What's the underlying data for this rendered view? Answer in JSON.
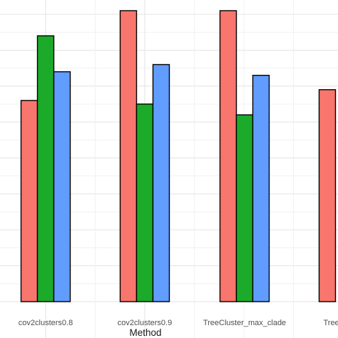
{
  "chart_data": {
    "type": "bar",
    "xlabel": "Method",
    "ylabel": "",
    "categories": [
      "cov2clusters0.8",
      "cov2clusters0.9",
      "TreeCluster_max_clade",
      "TreeCluster"
    ],
    "series": [
      {
        "color": "#F8766D",
        "values": [
          0.56,
          0.81,
          0.81,
          0.59
        ]
      },
      {
        "color": "#1BAA2A",
        "values": [
          0.74,
          0.55,
          0.52,
          null
        ]
      },
      {
        "color": "#619CFF",
        "values": [
          0.64,
          0.66,
          0.63,
          null
        ]
      }
    ],
    "ylim": [
      0,
      0.8
    ],
    "grid": true,
    "legend": "none"
  }
}
